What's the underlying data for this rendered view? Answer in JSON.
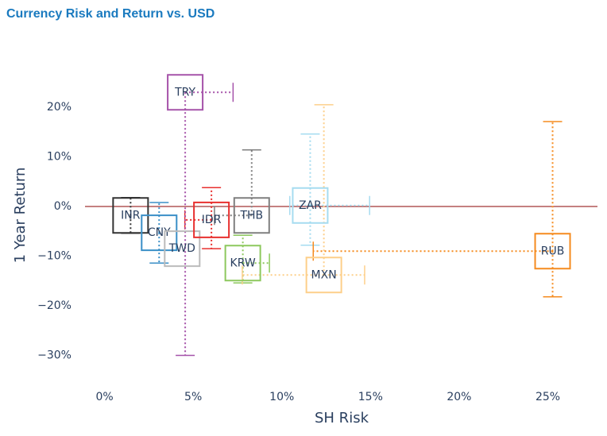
{
  "chart_data": {
    "type": "scatter",
    "title": "Currency Risk and Return vs. USD",
    "x_label": "SH Risk",
    "y_label": "1 Year Return",
    "xlim": [
      -1.1,
      27.8
    ],
    "ylim": [
      -36,
      28
    ],
    "xticks": [
      {
        "value": 0,
        "label": "0%"
      },
      {
        "value": 5,
        "label": "5%"
      },
      {
        "value": 10,
        "label": "10%"
      },
      {
        "value": 15,
        "label": "15%"
      },
      {
        "value": 20,
        "label": "20%"
      },
      {
        "value": 25,
        "label": "25%"
      }
    ],
    "yticks": [
      {
        "value": -30,
        "label": "−30%"
      },
      {
        "value": -20,
        "label": "−20%"
      },
      {
        "value": -10,
        "label": "−10%"
      },
      {
        "value": 0,
        "label": "0%"
      },
      {
        "value": 10,
        "label": "10%"
      },
      {
        "value": 20,
        "label": "20%"
      }
    ],
    "series": [
      {
        "name": "INR",
        "color": "#333333",
        "x": 1.47,
        "y": -1.8,
        "x_err": [
          0,
          0
        ],
        "y_err": [
          3.6,
          3.6
        ]
      },
      {
        "name": "CNY",
        "color": "#3a8fc7",
        "x": 3.08,
        "y": -5.3,
        "x_err": [
          0,
          0
        ],
        "y_err": [
          6.1,
          6.1
        ]
      },
      {
        "name": "TWD",
        "color": "#bbbbbb",
        "x": 4.38,
        "y": -8.5,
        "x_err": [
          0,
          0
        ],
        "y_err": [
          0,
          0
        ]
      },
      {
        "name": "IDR",
        "color": "#e8302f",
        "x": 6.03,
        "y": -2.7,
        "x_err": [
          1.5,
          0
        ],
        "y_err": [
          5.8,
          6.5
        ]
      },
      {
        "name": "THB",
        "color": "#7f7f7f",
        "x": 8.3,
        "y": -1.8,
        "x_err": [
          2.1,
          0
        ],
        "y_err": [
          0,
          13.2
        ]
      },
      {
        "name": "KRW",
        "color": "#8dc85e",
        "x": 7.8,
        "y": -11.4,
        "x_err": [
          0,
          1.5
        ],
        "y_err": [
          4,
          5.6
        ]
      },
      {
        "name": "ZAR",
        "color": "#a6dcf0",
        "x": 11.6,
        "y": 0.2,
        "x_err": [
          1.15,
          3.35
        ],
        "y_err": [
          8,
          14.4
        ]
      },
      {
        "name": "MXN",
        "color": "#fdcf8a",
        "x": 12.37,
        "y": -13.8,
        "x_err": [
          4.6,
          2.3
        ],
        "y_err": [
          0,
          34.3
        ]
      },
      {
        "name": "RUB",
        "color": "#f58b1f",
        "x": 25.27,
        "y": -9.0,
        "x_err": [
          13.5,
          0
        ],
        "y_err": [
          9.2,
          26.1
        ]
      },
      {
        "name": "TRY",
        "color": "#a552a9",
        "x": 4.55,
        "y": 23.0,
        "x_err": [
          0,
          2.7
        ],
        "y_err": [
          53,
          0
        ]
      }
    ]
  }
}
